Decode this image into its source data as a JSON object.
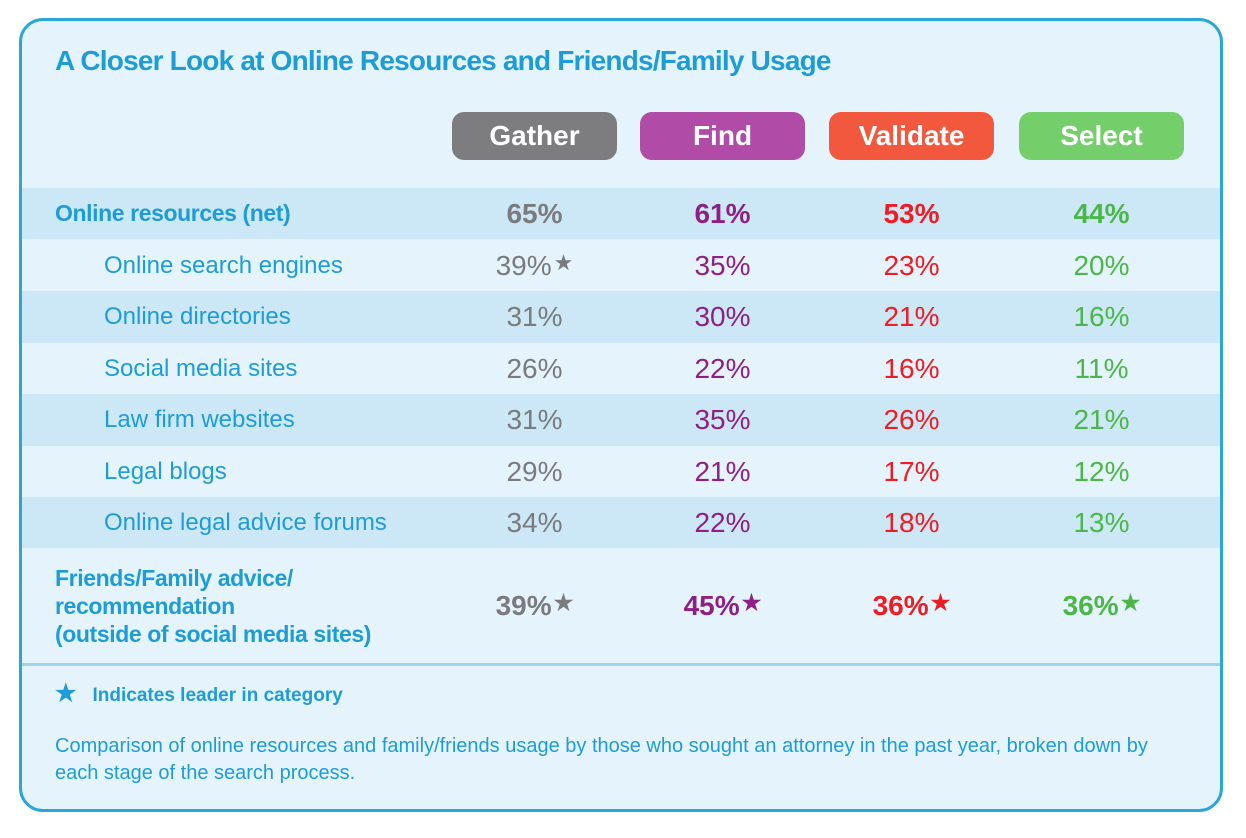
{
  "chart_data": {
    "type": "table",
    "title": "A Closer Look at Online Resources and Friends/Family Usage",
    "columns": [
      {
        "label": "Gather",
        "color": "#7d7d7f",
        "text_color": "#7b7b7d"
      },
      {
        "label": "Find",
        "color": "#b04ba8",
        "text_color": "#8e1f86"
      },
      {
        "label": "Validate",
        "color": "#f2583e",
        "text_color": "#ee1c25"
      },
      {
        "label": "Select",
        "color": "#74cf6b",
        "text_color": "#4cb748"
      }
    ],
    "rows": [
      {
        "label": "Online resources (net)",
        "kind": "main",
        "values": [
          "65%",
          "61%",
          "53%",
          "44%"
        ],
        "stars": [
          false,
          false,
          false,
          false
        ]
      },
      {
        "label": "Online search engines",
        "kind": "sub",
        "values": [
          "39%",
          "35%",
          "23%",
          "20%"
        ],
        "stars": [
          true,
          false,
          false,
          false
        ]
      },
      {
        "label": "Online directories",
        "kind": "sub",
        "values": [
          "31%",
          "30%",
          "21%",
          "16%"
        ],
        "stars": [
          false,
          false,
          false,
          false
        ]
      },
      {
        "label": "Social media sites",
        "kind": "sub",
        "values": [
          "26%",
          "22%",
          "16%",
          "11%"
        ],
        "stars": [
          false,
          false,
          false,
          false
        ]
      },
      {
        "label": "Law firm websites",
        "kind": "sub",
        "values": [
          "31%",
          "35%",
          "26%",
          "21%"
        ],
        "stars": [
          false,
          false,
          false,
          false
        ]
      },
      {
        "label": "Legal blogs",
        "kind": "sub",
        "values": [
          "29%",
          "21%",
          "17%",
          "12%"
        ],
        "stars": [
          false,
          false,
          false,
          false
        ]
      },
      {
        "label": "Online legal advice forums",
        "kind": "sub",
        "values": [
          "34%",
          "22%",
          "18%",
          "13%"
        ],
        "stars": [
          false,
          false,
          false,
          false
        ]
      },
      {
        "label": "Friends/Family advice/\nrecommendation\n(outside of social media sites)",
        "kind": "main",
        "values": [
          "39%",
          "45%",
          "36%",
          "36%"
        ],
        "stars": [
          true,
          true,
          true,
          true
        ]
      }
    ]
  },
  "legend": {
    "star": "★",
    "text": "Indicates leader in category"
  },
  "note": "Comparison of online resources and family/friends usage by those who sought an attorney in the past year, broken down by each stage of the search process.",
  "colors": {
    "accent": "#1e9cd7",
    "background": "#e4f3fc",
    "band": "#cce7f6"
  }
}
